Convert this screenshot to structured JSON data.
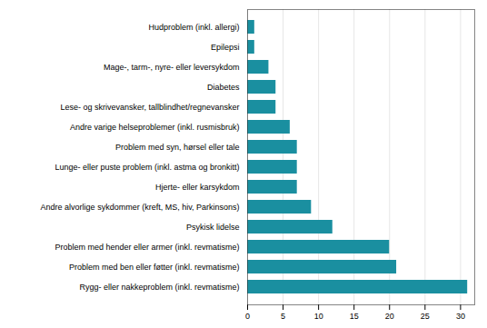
{
  "chart_data": {
    "type": "bar",
    "orientation": "horizontal",
    "categories": [
      "Hudproblem (inkl. allergi)",
      "Epilepsi",
      "Mage-, tarm-, nyre- eller leversykdom",
      "Diabetes",
      "Lese- og skrivevansker, tallblindhet/regnevansker",
      "Andre varige helseproblemer (inkl. rusmisbruk)",
      "Problem med syn, hørsel eller tale",
      "Lunge- eller puste problem (inkl. astma og bronkitt)",
      "Hjerte- eller karsykdom",
      "Andre alvorlige sykdommer (kreft, MS, hiv, Parkinsons)",
      "Psykisk lidelse",
      "Problem med hender eller armer (inkl. revmatisme)",
      "Problem med ben eller føtter (inkl. revmatisme)",
      "Rygg- eller nakkeproblem (inkl. revmatisme)"
    ],
    "values": [
      1,
      1,
      3,
      4,
      4,
      6,
      7,
      7,
      7,
      9,
      12,
      20,
      21,
      31
    ],
    "color": "#1a8fa0",
    "xlim": [
      0,
      32
    ],
    "xticks": [
      0,
      5,
      10,
      15,
      20,
      25,
      30
    ],
    "grid": true
  }
}
